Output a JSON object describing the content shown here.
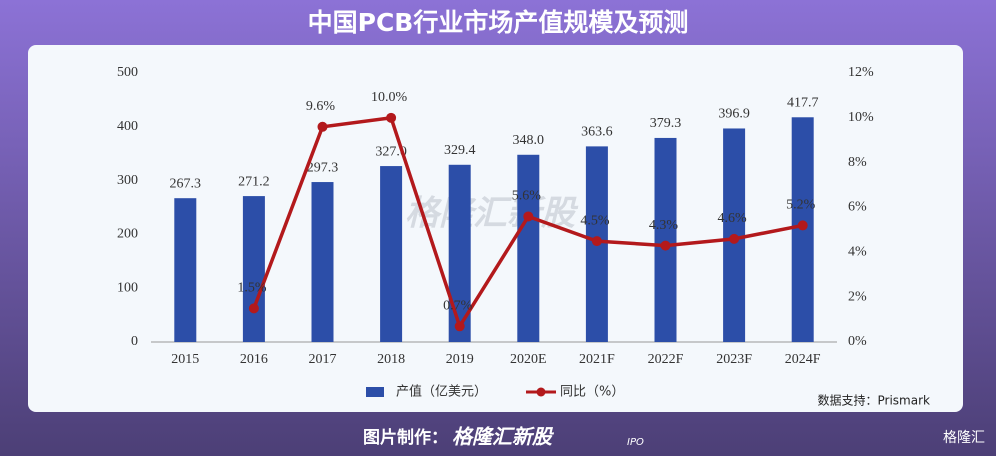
{
  "chart_data": {
    "type": "bar",
    "title": "中国PCB行业市场产值规模及预测",
    "categories": [
      "2015",
      "2016",
      "2017",
      "2018",
      "2019",
      "2020E",
      "2021F",
      "2022F",
      "2023F",
      "2024F"
    ],
    "series": [
      {
        "name": "产值（亿美元）",
        "type": "bar",
        "color": "#2c4ea8",
        "values": [
          267.3,
          271.2,
          297.3,
          327.0,
          329.4,
          348.0,
          363.6,
          379.3,
          396.9,
          417.7
        ],
        "value_labels": [
          "267.3",
          "271.2",
          "297.3",
          "327.0",
          "329.4",
          "348.0",
          "363.6",
          "379.3",
          "396.9",
          "417.7"
        ]
      },
      {
        "name": "同比（%）",
        "type": "line",
        "axis": "y2",
        "color": "#b3191c",
        "values": [
          null,
          1.5,
          9.6,
          10.0,
          0.7,
          5.6,
          4.5,
          4.3,
          4.6,
          5.2
        ],
        "value_labels": [
          null,
          "1.5%",
          "9.6%",
          "10.0%",
          "0.7%",
          "5.6%",
          "4.5%",
          "4.3%",
          "4.6%",
          "5.2%"
        ]
      }
    ],
    "ylim": [
      0,
      500
    ],
    "yticks": [
      0,
      100,
      200,
      300,
      400,
      500
    ],
    "y2lim": [
      0,
      12
    ],
    "y2ticks": [
      {
        "value": 0,
        "label": "0%"
      },
      {
        "value": 2,
        "label": "2%"
      },
      {
        "value": 4,
        "label": "4%"
      },
      {
        "value": 6,
        "label": "6%"
      },
      {
        "value": 8,
        "label": "8%"
      },
      {
        "value": 10,
        "label": "10%"
      },
      {
        "value": 12,
        "label": "12%"
      }
    ],
    "grid": false,
    "legend": "bottom",
    "source": "数据支持：Prismark",
    "watermark": "格隆汇新股",
    "footer": {
      "label": "图片制作：",
      "brand": "格隆汇新股",
      "brand_sub": "IPO"
    },
    "logo": "格隆汇"
  }
}
